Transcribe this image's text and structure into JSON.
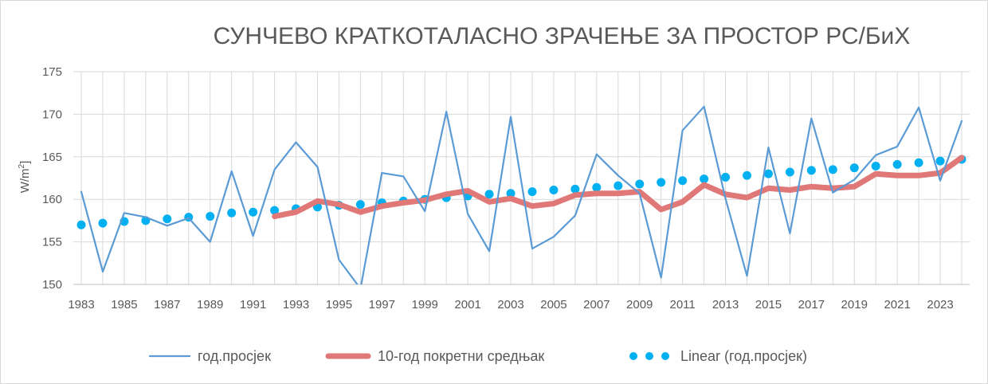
{
  "chart_data": {
    "type": "line",
    "title": "СУНЧЕВО КРАТКОТАЛАСНО ЗРАЧЕЊЕ ЗА ПРОСТОР РС/БиХ",
    "ylabel": "W/m",
    "ylabel_sup": "2",
    "xlabel": "",
    "ylim": [
      150,
      175
    ],
    "yticks": [
      150,
      155,
      160,
      165,
      170,
      175
    ],
    "x": [
      1983,
      1984,
      1985,
      1986,
      1987,
      1988,
      1989,
      1990,
      1991,
      1992,
      1993,
      1994,
      1995,
      1996,
      1997,
      1998,
      1999,
      2000,
      2001,
      2002,
      2003,
      2004,
      2005,
      2006,
      2007,
      2008,
      2009,
      2010,
      2011,
      2012,
      2013,
      2014,
      2015,
      2016,
      2017,
      2018,
      2019,
      2020,
      2021,
      2022,
      2023,
      2024
    ],
    "xtick_labels": [
      "1983",
      "1985",
      "1987",
      "1989",
      "1991",
      "1993",
      "1995",
      "1997",
      "1999",
      "2001",
      "2003",
      "2005",
      "2007",
      "2009",
      "2011",
      "2013",
      "2015",
      "2017",
      "2019",
      "2021",
      "2023"
    ],
    "grid": true,
    "legend_position": "bottom",
    "series": [
      {
        "name": "год.просјек",
        "color": "#5b9bd5",
        "style": "line",
        "values": [
          160.9,
          151.5,
          158.4,
          157.9,
          156.9,
          157.8,
          155.0,
          163.3,
          155.7,
          163.5,
          166.7,
          163.8,
          152.9,
          149.5,
          163.1,
          162.7,
          158.6,
          170.3,
          158.3,
          153.9,
          169.7,
          154.2,
          155.6,
          158.1,
          165.3,
          162.8,
          160.7,
          150.8,
          168.1,
          170.9,
          160.1,
          151.0,
          166.1,
          156.0,
          169.5,
          160.8,
          162.3,
          165.2,
          166.2,
          170.8,
          162.2,
          169.2
        ]
      },
      {
        "name": "10-год покретни средњак",
        "color": "#e07878",
        "style": "thick-line",
        "values": [
          null,
          null,
          null,
          null,
          null,
          null,
          null,
          null,
          null,
          158.0,
          158.5,
          159.8,
          159.4,
          158.5,
          159.2,
          159.6,
          159.9,
          160.6,
          161.0,
          159.7,
          160.1,
          159.2,
          159.5,
          160.5,
          160.7,
          160.7,
          160.9,
          158.8,
          159.7,
          161.7,
          160.6,
          160.2,
          161.3,
          161.1,
          161.5,
          161.3,
          161.5,
          163.0,
          162.8,
          162.8,
          163.1,
          164.9
        ]
      },
      {
        "name": "Linear (год.просјек)",
        "color": "#00b0f0",
        "style": "dotted-trend",
        "values": [
          157.0,
          157.2,
          157.4,
          157.5,
          157.7,
          157.9,
          158.0,
          158.4,
          158.5,
          158.7,
          158.9,
          159.1,
          159.3,
          159.4,
          159.6,
          159.8,
          160.0,
          160.2,
          160.4,
          160.6,
          160.7,
          160.9,
          161.1,
          161.2,
          161.4,
          161.6,
          161.8,
          162.0,
          162.2,
          162.4,
          162.6,
          162.8,
          163.0,
          163.2,
          163.4,
          163.5,
          163.7,
          163.9,
          164.1,
          164.3,
          164.5,
          164.7
        ]
      }
    ]
  }
}
